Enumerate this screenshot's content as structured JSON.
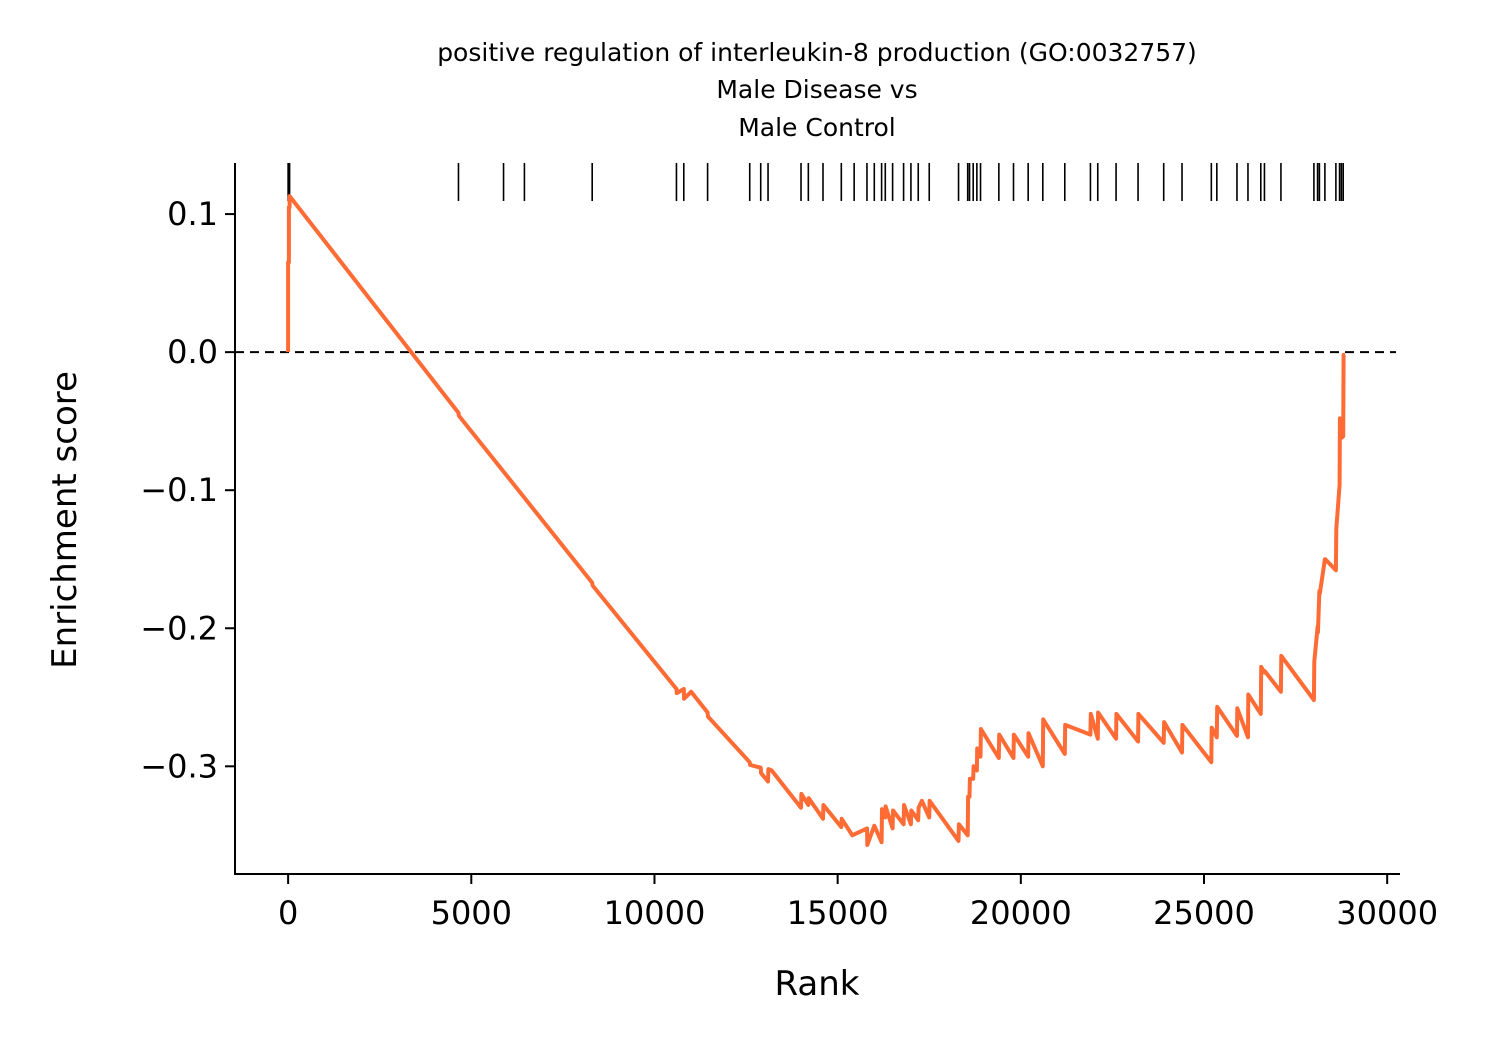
{
  "chart_data": {
    "type": "line",
    "title": [
      "positive regulation of interleukin-8 production (GO:0032757)",
      "Male Disease vs",
      "Male Control"
    ],
    "xlabel": "Rank",
    "ylabel": "Enrichment score",
    "xlim": [
      -1450,
      30350
    ],
    "ylim": [
      -0.378,
      0.137
    ],
    "xticks": [
      0,
      5000,
      10000,
      15000,
      20000,
      25000,
      30000
    ],
    "xtick_labels": [
      "0",
      "5000",
      "10000",
      "15000",
      "20000",
      "25000",
      "30000"
    ],
    "yticks": [
      0.1,
      0.0,
      -0.1,
      -0.2,
      -0.3
    ],
    "ytick_labels": [
      "0.1",
      "0.0",
      "−0.1",
      "−0.2",
      "−0.3"
    ],
    "zero_line": 0,
    "line_color": "#ff6b35",
    "series": [
      {
        "x": [
          0,
          0,
          20,
          20,
          40,
          40,
          4650,
          4660,
          8300,
          8310,
          10600,
          10610,
          10800,
          10810,
          11000,
          11450,
          11460,
          12600,
          12610,
          12900,
          12910,
          13100,
          13110,
          13200,
          14000,
          14010,
          14200,
          14210,
          14600,
          14610,
          15100,
          15110,
          15400,
          15800,
          15810,
          16000,
          16200,
          16210,
          16300,
          16310,
          16500,
          16510,
          16800,
          16810,
          17000,
          17010,
          17200,
          17210,
          17300,
          17500,
          17510,
          18300,
          18310,
          18550,
          18560,
          18600,
          18610,
          18700,
          18710,
          18800,
          18810,
          18900,
          18910,
          19400,
          19410,
          19800,
          19810,
          20200,
          20210,
          20600,
          20610,
          21200,
          21210,
          21900,
          21910,
          22100,
          22110,
          22600,
          22610,
          23200,
          23210,
          23900,
          23910,
          24400,
          24410,
          25200,
          25210,
          25350,
          25360,
          25900,
          25910,
          26200,
          26210,
          26550,
          26560,
          26650,
          26660,
          27100,
          27110,
          28000,
          28010,
          28100,
          28110,
          28150,
          28160,
          28300,
          28310,
          28600,
          28610,
          28700,
          28710,
          28750,
          28760,
          28800,
          28810,
          28850
        ],
        "y": [
          0.0,
          0.065,
          0.065,
          0.105,
          0.105,
          0.113,
          -0.044,
          -0.046,
          -0.167,
          -0.169,
          -0.244,
          -0.247,
          -0.244,
          -0.251,
          -0.246,
          -0.261,
          -0.264,
          -0.297,
          -0.299,
          -0.301,
          -0.305,
          -0.311,
          -0.302,
          -0.303,
          -0.33,
          -0.32,
          -0.328,
          -0.323,
          -0.338,
          -0.328,
          -0.344,
          -0.338,
          -0.35,
          -0.345,
          -0.357,
          -0.343,
          -0.355,
          -0.331,
          -0.337,
          -0.329,
          -0.345,
          -0.332,
          -0.342,
          -0.328,
          -0.342,
          -0.332,
          -0.339,
          -0.33,
          -0.325,
          -0.337,
          -0.325,
          -0.354,
          -0.342,
          -0.35,
          -0.322,
          -0.322,
          -0.309,
          -0.309,
          -0.3,
          -0.303,
          -0.287,
          -0.293,
          -0.273,
          -0.294,
          -0.277,
          -0.294,
          -0.277,
          -0.293,
          -0.276,
          -0.3,
          -0.266,
          -0.291,
          -0.27,
          -0.277,
          -0.262,
          -0.28,
          -0.261,
          -0.28,
          -0.262,
          -0.282,
          -0.262,
          -0.283,
          -0.268,
          -0.29,
          -0.27,
          -0.297,
          -0.272,
          -0.279,
          -0.257,
          -0.278,
          -0.258,
          -0.279,
          -0.248,
          -0.262,
          -0.228,
          -0.232,
          -0.231,
          -0.246,
          -0.22,
          -0.252,
          -0.224,
          -0.199,
          -0.203,
          -0.173,
          -0.175,
          -0.15,
          -0.15,
          -0.158,
          -0.128,
          -0.096,
          -0.048,
          -0.062,
          -0.062,
          -0.061,
          -0.002,
          -0.002
        ]
      }
    ],
    "gene_hits": [
      0,
      20,
      40,
      4650,
      5880,
      6450,
      8300,
      10600,
      10800,
      11450,
      12600,
      12900,
      13100,
      14000,
      14200,
      14600,
      15100,
      15450,
      15800,
      16000,
      16200,
      16300,
      16500,
      16800,
      17000,
      17200,
      17500,
      18300,
      18550,
      18600,
      18700,
      18800,
      18900,
      19400,
      19800,
      20200,
      20600,
      21200,
      21900,
      22100,
      22600,
      23200,
      23900,
      24400,
      25200,
      25350,
      25900,
      26200,
      26550,
      26650,
      27100,
      28000,
      28100,
      28150,
      28300,
      28600,
      28700,
      28750,
      28800
    ]
  }
}
